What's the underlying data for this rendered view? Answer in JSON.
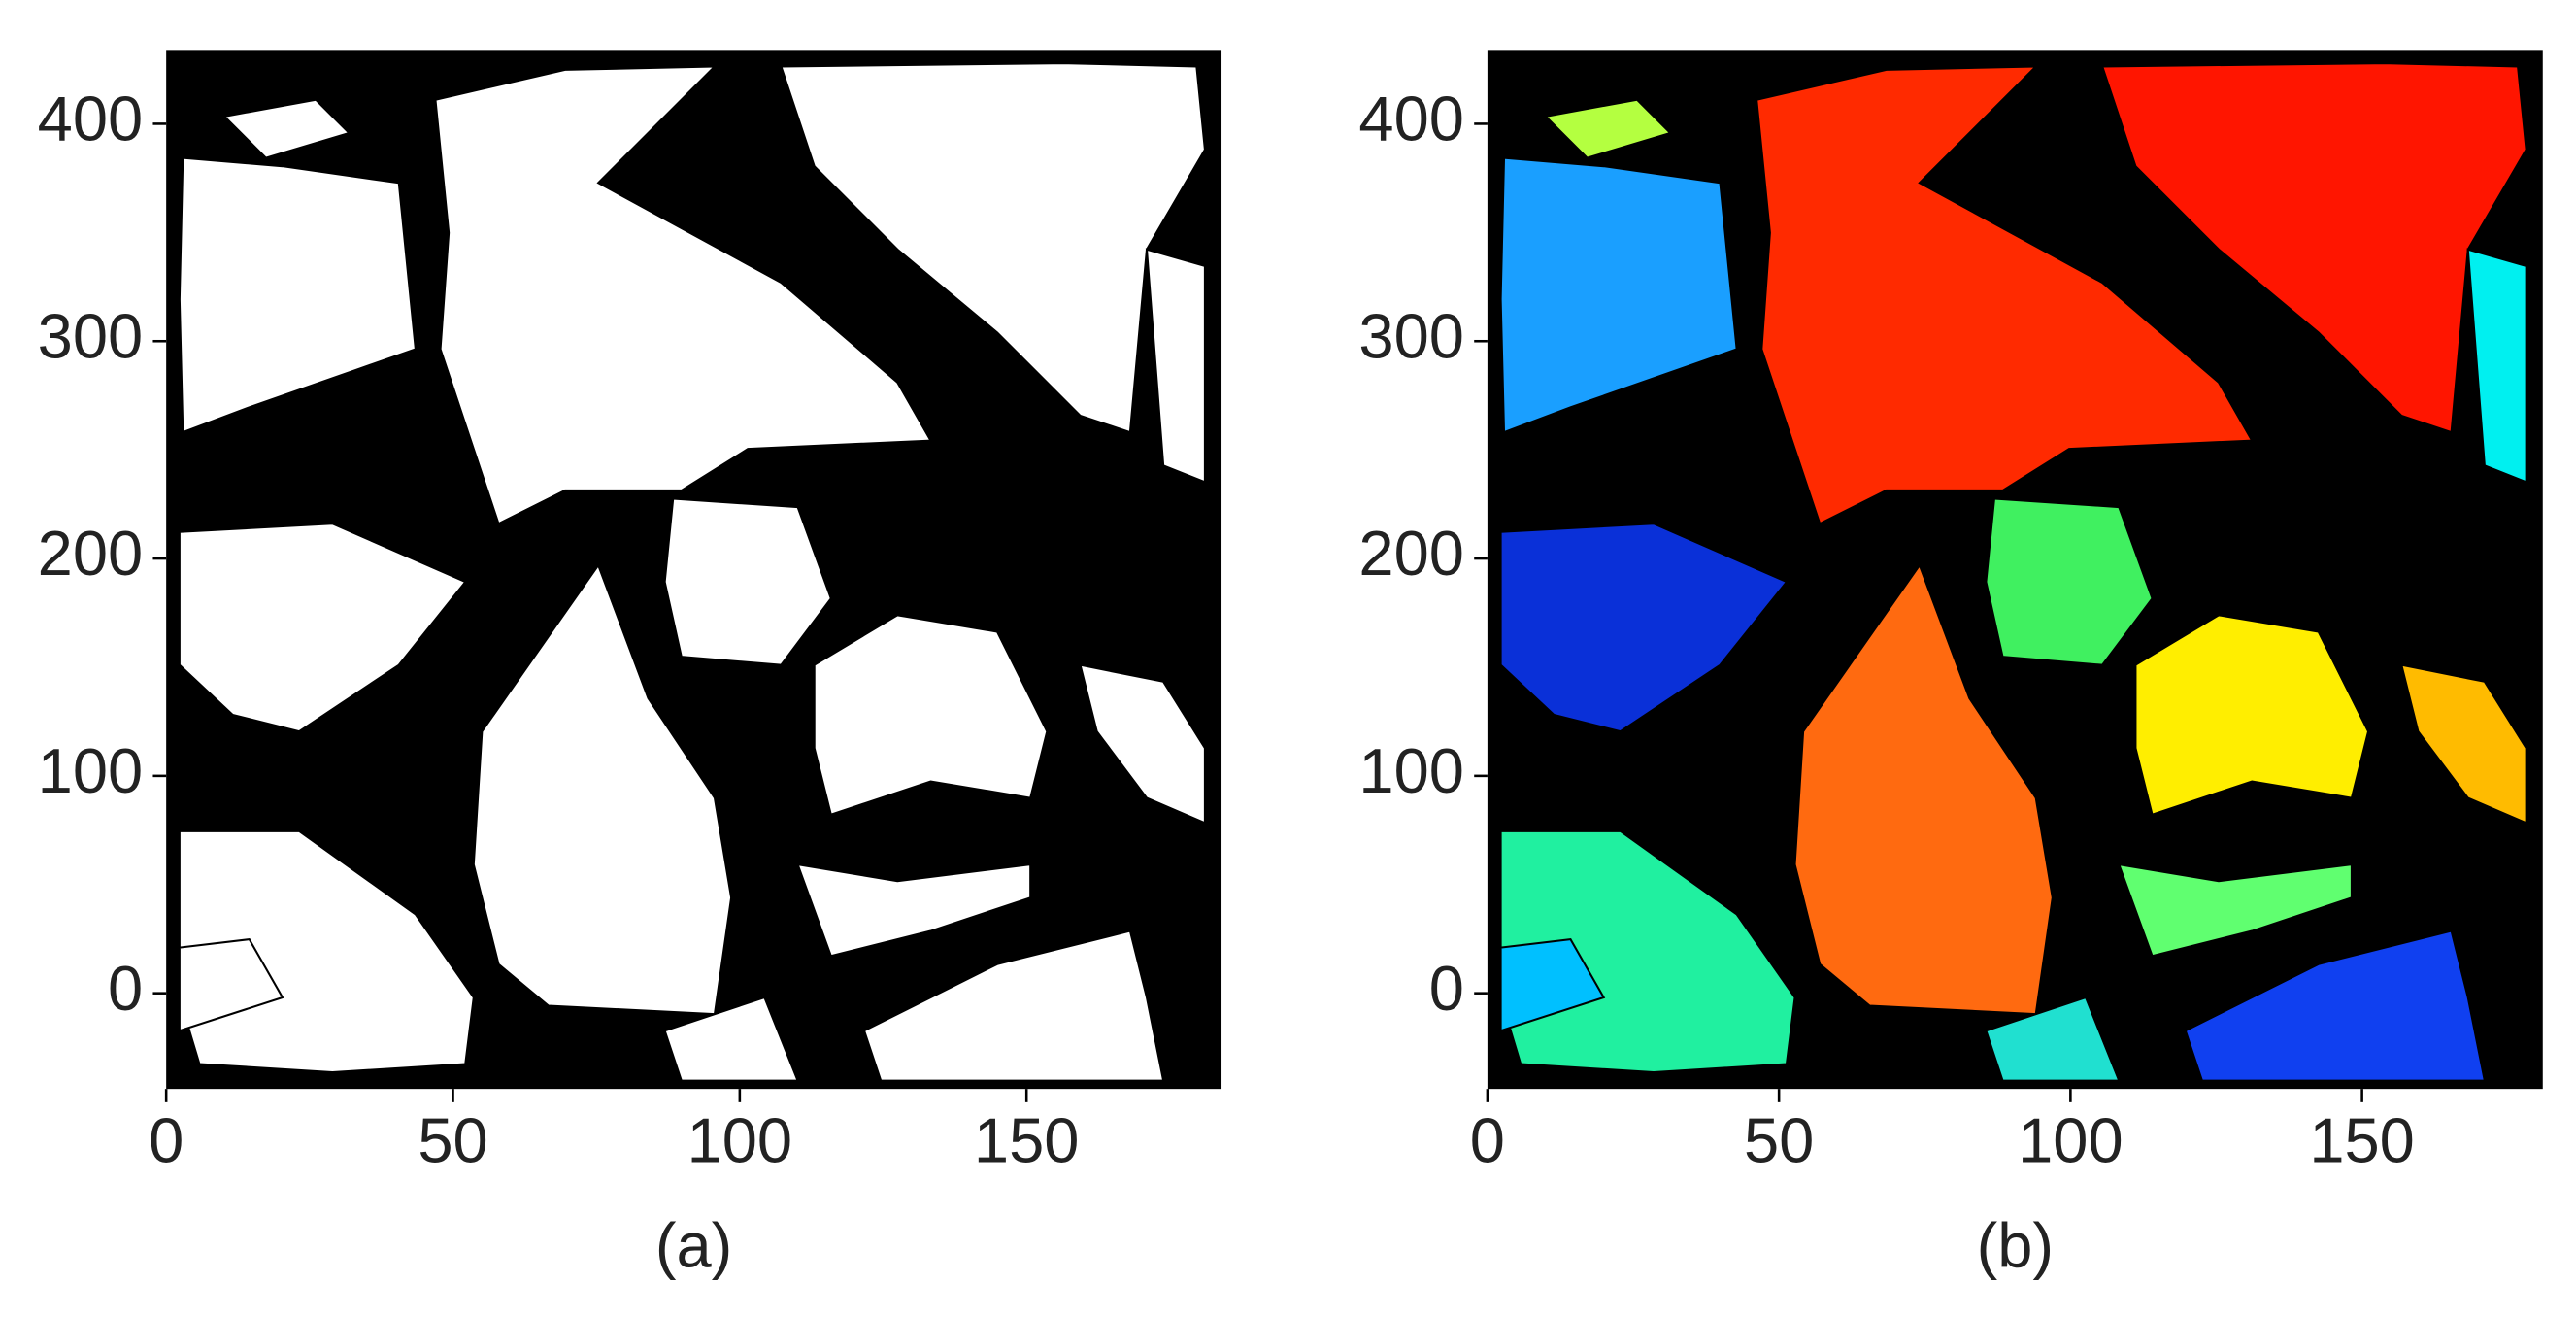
{
  "chart_data": [
    {
      "type": "image",
      "caption": "(a)",
      "xlim": [
        0,
        184
      ],
      "ylim": [
        -44,
        434
      ],
      "xticks": [
        0,
        50,
        100,
        150
      ],
      "yticks": [
        0,
        100,
        200,
        300,
        400
      ]
    },
    {
      "type": "image",
      "caption": "(b)",
      "xlim": [
        0,
        181
      ],
      "ylim": [
        -44,
        434
      ],
      "xticks": [
        0,
        50,
        100,
        150
      ],
      "yticks": [
        0,
        100,
        200,
        300,
        400
      ]
    }
  ]
}
